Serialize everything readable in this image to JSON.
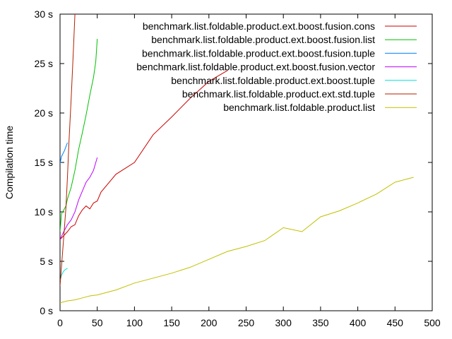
{
  "chart_data": {
    "type": "line",
    "title": "",
    "xlabel": "",
    "ylabel": "Compilation time",
    "xlim": [
      0,
      500
    ],
    "ylim": [
      0,
      30
    ],
    "xticks": [
      0,
      50,
      100,
      150,
      200,
      250,
      300,
      350,
      400,
      450,
      500
    ],
    "yticks": [
      0,
      5,
      10,
      15,
      20,
      25,
      30
    ],
    "ytick_labels": [
      "0 s",
      "5 s",
      "10 s",
      "15 s",
      "20 s",
      "25 s",
      "30 s"
    ],
    "grid": false,
    "legend_position": "top-right",
    "series": [
      {
        "name": "benchmark.list.foldable.product.ext.boost.fusion.cons",
        "color": "#cc0000",
        "x": [
          0,
          5,
          10,
          15,
          20,
          25,
          30,
          35,
          40,
          45,
          50,
          55,
          75,
          100,
          125,
          150,
          175,
          200,
          225
        ],
        "y": [
          7.2,
          7.6,
          8.0,
          8.5,
          8.7,
          9.6,
          10.2,
          10.6,
          10.3,
          10.9,
          11.1,
          12.0,
          13.8,
          15.0,
          17.8,
          19.6,
          21.5,
          23.2,
          24.3
        ]
      },
      {
        "name": "benchmark.list.foldable.product.ext.boost.fusion.list",
        "color": "#00c000",
        "x": [
          0,
          2,
          5,
          8,
          10,
          15,
          20,
          25,
          30,
          35,
          40,
          45,
          48,
          50
        ],
        "y": [
          8.0,
          9.8,
          10.2,
          10.6,
          11.3,
          12.5,
          14.2,
          16.3,
          18.0,
          19.8,
          21.8,
          23.6,
          25.2,
          27.5
        ]
      },
      {
        "name": "benchmark.list.foldable.product.ext.boost.fusion.tuple",
        "color": "#0080ff",
        "x": [
          0,
          2,
          4,
          6,
          8,
          10
        ],
        "y": [
          14.9,
          15.6,
          15.9,
          16.2,
          16.6,
          17.0
        ]
      },
      {
        "name": "benchmark.list.foldable.product.ext.boost.fusion.vector",
        "color": "#c000ff",
        "x": [
          0,
          5,
          10,
          15,
          20,
          25,
          30,
          35,
          40,
          45,
          50
        ],
        "y": [
          7.2,
          8.0,
          8.7,
          9.2,
          10.0,
          11.2,
          12.1,
          13.0,
          13.5,
          14.2,
          15.5
        ]
      },
      {
        "name": "benchmark.list.foldable.product.ext.boost.tuple",
        "color": "#00e0e0",
        "x": [
          0,
          2,
          4,
          6,
          8,
          10
        ],
        "y": [
          3.0,
          3.6,
          3.9,
          4.1,
          4.2,
          4.3
        ]
      },
      {
        "name": "benchmark.list.foldable.product.ext.std.tuple",
        "color": "#b02000",
        "x": [
          0,
          2,
          5,
          8,
          10,
          12,
          15,
          18,
          20
        ],
        "y": [
          2.5,
          4.5,
          7.5,
          10.5,
          13.5,
          17.0,
          21.5,
          26.5,
          30.0
        ]
      },
      {
        "name": "benchmark.list.foldable.product.list",
        "color": "#c0c000",
        "x": [
          0,
          10,
          20,
          30,
          40,
          50,
          75,
          100,
          125,
          150,
          175,
          200,
          225,
          250,
          275,
          300,
          325,
          350,
          375,
          400,
          425,
          450,
          475
        ],
        "y": [
          0.8,
          1.0,
          1.1,
          1.3,
          1.5,
          1.6,
          2.1,
          2.8,
          3.3,
          3.8,
          4.4,
          5.2,
          6.0,
          6.5,
          7.1,
          8.4,
          8.0,
          9.5,
          10.1,
          10.9,
          11.8,
          13.0,
          13.5
        ]
      }
    ]
  }
}
